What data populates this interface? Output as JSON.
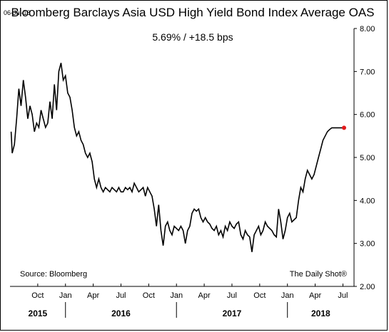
{
  "header": {
    "date": "06-Jul-18",
    "title": "Bloomberg Barclays Asia USD High Yield Bond Index Average OAS",
    "subtitle": "5.69%  /  +18.5 bps"
  },
  "footer": {
    "source": "Source: Bloomberg",
    "credit": "The Daily Shot®"
  },
  "colors": {
    "line": "#000000",
    "last_point": "#e31a1c",
    "frame": "#000000"
  },
  "chart_data": {
    "type": "line",
    "title": "Bloomberg Barclays Asia USD High Yield Bond Index Average OAS",
    "ylim": [
      2.0,
      8.0
    ],
    "yticks": [
      "8.00",
      "7.00",
      "6.00",
      "5.00",
      "4.00",
      "3.00",
      "2.00"
    ],
    "ytick_values": [
      8,
      7,
      6,
      5,
      4,
      3,
      2
    ],
    "xlim": [
      2015.5,
      2018.6
    ],
    "xticks": [
      {
        "label": "Oct",
        "x": 2015.75
      },
      {
        "label": "Jan",
        "x": 2016.0
      },
      {
        "label": "Apr",
        "x": 2016.25
      },
      {
        "label": "Jul",
        "x": 2016.5
      },
      {
        "label": "Oct",
        "x": 2016.75
      },
      {
        "label": "Jan",
        "x": 2017.0
      },
      {
        "label": "Apr",
        "x": 2017.25
      },
      {
        "label": "Jul",
        "x": 2017.5
      },
      {
        "label": "Oct",
        "x": 2017.75
      },
      {
        "label": "Jan",
        "x": 2018.0
      },
      {
        "label": "Apr",
        "x": 2018.25
      },
      {
        "label": "Jul",
        "x": 2018.5
      }
    ],
    "years": [
      {
        "label": "2015",
        "x": 2015.75
      },
      {
        "label": "2016",
        "x": 2016.5
      },
      {
        "label": "2017",
        "x": 2017.5
      },
      {
        "label": "2018",
        "x": 2018.3
      }
    ],
    "year_dividers": [
      2016.0,
      2017.0,
      2018.0
    ],
    "series": [
      {
        "x": [
          2015.51,
          2015.52,
          2015.54,
          2015.56,
          2015.58,
          2015.6,
          2015.62,
          2015.64,
          2015.66,
          2015.68,
          2015.7,
          2015.72,
          2015.74,
          2015.76,
          2015.78,
          2015.8,
          2015.82,
          2015.84,
          2015.86,
          2015.88,
          2015.9,
          2015.92,
          2015.94,
          2015.96,
          2015.98,
          2016.0,
          2016.02,
          2016.04,
          2016.06,
          2016.08,
          2016.1,
          2016.12,
          2016.14,
          2016.16,
          2016.18,
          2016.2,
          2016.22,
          2016.24,
          2016.26,
          2016.28,
          2016.3,
          2016.32,
          2016.34,
          2016.36,
          2016.38,
          2016.4,
          2016.42,
          2016.44,
          2016.46,
          2016.48,
          2016.5,
          2016.52,
          2016.54,
          2016.56,
          2016.58,
          2016.6,
          2016.62,
          2016.64,
          2016.66,
          2016.68,
          2016.7,
          2016.72,
          2016.74,
          2016.76,
          2016.78,
          2016.8,
          2016.82,
          2016.84,
          2016.86,
          2016.88,
          2016.9,
          2016.92,
          2016.94,
          2016.96,
          2016.98,
          2017.0,
          2017.02,
          2017.04,
          2017.06,
          2017.08,
          2017.1,
          2017.12,
          2017.14,
          2017.16,
          2017.18,
          2017.2,
          2017.22,
          2017.24,
          2017.26,
          2017.28,
          2017.3,
          2017.32,
          2017.34,
          2017.36,
          2017.38,
          2017.4,
          2017.42,
          2017.44,
          2017.46,
          2017.48,
          2017.5,
          2017.52,
          2017.54,
          2017.56,
          2017.58,
          2017.6,
          2017.62,
          2017.64,
          2017.66,
          2017.68,
          2017.7,
          2017.72,
          2017.74,
          2017.76,
          2017.78,
          2017.8,
          2017.82,
          2017.84,
          2017.86,
          2017.88,
          2017.9,
          2017.92,
          2017.94,
          2017.96,
          2017.98,
          2018.0,
          2018.02,
          2018.04,
          2018.06,
          2018.08,
          2018.1,
          2018.12,
          2018.14,
          2018.16,
          2018.18,
          2018.2,
          2018.22,
          2018.24,
          2018.26,
          2018.28,
          2018.3,
          2018.32,
          2018.34,
          2018.36,
          2018.38,
          2018.4,
          2018.42,
          2018.44,
          2018.46,
          2018.48,
          2018.5,
          2018.51
        ],
        "values": [
          5.6,
          5.1,
          5.3,
          5.9,
          6.6,
          6.2,
          6.8,
          6.4,
          5.9,
          6.2,
          6.0,
          5.6,
          5.8,
          5.7,
          6.1,
          5.9,
          5.7,
          5.8,
          6.3,
          5.9,
          6.7,
          6.1,
          7.0,
          7.2,
          6.8,
          6.9,
          6.5,
          6.4,
          6.1,
          5.7,
          5.5,
          5.6,
          5.4,
          5.3,
          5.1,
          5.0,
          5.1,
          4.9,
          4.5,
          4.3,
          4.5,
          4.3,
          4.2,
          4.3,
          4.25,
          4.2,
          4.3,
          4.25,
          4.2,
          4.3,
          4.2,
          4.2,
          4.3,
          4.25,
          4.3,
          4.2,
          4.4,
          4.3,
          4.2,
          4.25,
          4.3,
          4.1,
          4.3,
          4.2,
          4.1,
          3.8,
          3.4,
          3.9,
          3.3,
          2.95,
          3.4,
          3.5,
          3.3,
          3.2,
          3.4,
          3.35,
          3.3,
          3.4,
          3.3,
          3.0,
          3.3,
          3.4,
          3.7,
          3.8,
          3.75,
          3.8,
          3.6,
          3.5,
          3.6,
          3.5,
          3.45,
          3.35,
          3.3,
          3.4,
          3.2,
          3.3,
          3.15,
          3.4,
          3.3,
          3.5,
          3.4,
          3.35,
          3.45,
          3.5,
          3.2,
          3.1,
          3.3,
          3.2,
          3.15,
          2.8,
          3.2,
          3.3,
          3.4,
          3.2,
          3.3,
          3.5,
          3.4,
          3.35,
          3.3,
          3.2,
          3.15,
          3.8,
          3.5,
          3.1,
          3.3,
          3.6,
          3.7,
          3.5,
          3.55,
          3.6,
          4.0,
          4.3,
          4.2,
          4.5,
          4.7,
          4.6,
          4.5,
          4.6,
          4.8,
          5.0,
          5.2,
          5.4,
          5.5,
          5.6,
          5.65,
          5.69,
          5.69,
          5.69,
          5.69,
          5.69,
          5.69,
          5.69
        ],
        "last_value": 5.69
      }
    ]
  }
}
